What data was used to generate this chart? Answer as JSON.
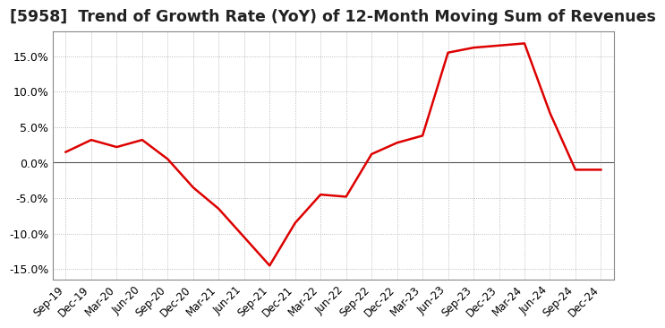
{
  "title": "[5958]  Trend of Growth Rate (YoY) of 12-Month Moving Sum of Revenues",
  "title_fontsize": 12.5,
  "line_color": "#dd0000",
  "background_color": "#ffffff",
  "grid_color": "#aaaaaa",
  "ylim": [
    -16.5,
    18.5
  ],
  "yticks": [
    -15.0,
    -10.0,
    -5.0,
    0.0,
    5.0,
    10.0,
    15.0
  ],
  "x_labels": [
    "Sep-19",
    "Dec-19",
    "Mar-20",
    "Jun-20",
    "Sep-20",
    "Dec-20",
    "Mar-21",
    "Jun-21",
    "Sep-21",
    "Dec-21",
    "Mar-22",
    "Jun-22",
    "Sep-22",
    "Dec-22",
    "Mar-23",
    "Jun-23",
    "Sep-23",
    "Dec-23",
    "Mar-24",
    "Jun-24",
    "Sep-24",
    "Dec-24"
  ],
  "values": [
    1.5,
    3.2,
    2.2,
    3.2,
    0.5,
    -3.5,
    -6.5,
    -10.5,
    -14.5,
    -8.5,
    -4.5,
    -4.8,
    1.2,
    2.8,
    3.8,
    15.5,
    16.2,
    16.5,
    16.8,
    7.0,
    -1.0,
    -1.0
  ]
}
